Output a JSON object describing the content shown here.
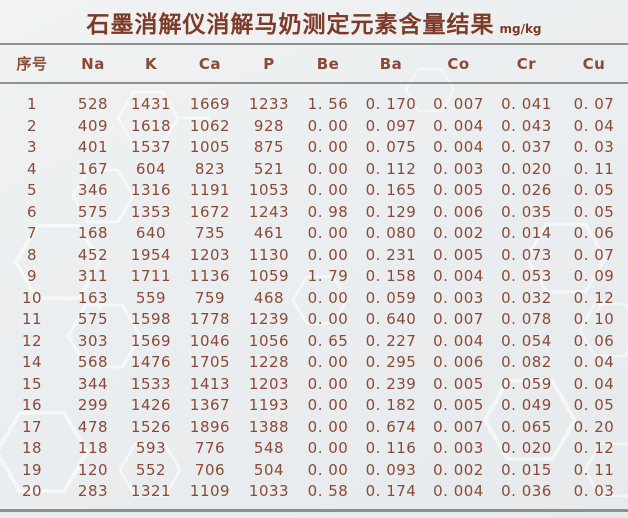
{
  "title": {
    "text": "石墨消解仪消解马奶测定元素含量结果",
    "unit": "mg/kg"
  },
  "table": {
    "columns": [
      "序号",
      "Na",
      "K",
      "Ca",
      "P",
      "Be",
      "Ba",
      "Co",
      "Cr",
      "Cu"
    ],
    "rows": [
      [
        "1",
        "528",
        "1431",
        "1669",
        "1233",
        "1. 56",
        "0. 170",
        "0. 007",
        "0. 041",
        "0. 07"
      ],
      [
        "2",
        "409",
        "1618",
        "1062",
        "928",
        "0. 00",
        "0. 097",
        "0. 004",
        "0. 043",
        "0. 04"
      ],
      [
        "3",
        "401",
        "1537",
        "1005",
        "875",
        "0. 00",
        "0. 075",
        "0. 004",
        "0. 037",
        "0. 03"
      ],
      [
        "4",
        "167",
        "604",
        "823",
        "521",
        "0. 00",
        "0. 112",
        "0. 003",
        "0. 020",
        "0. 11"
      ],
      [
        "5",
        "346",
        "1316",
        "1191",
        "1053",
        "0. 00",
        "0. 165",
        "0. 005",
        "0. 026",
        "0. 05"
      ],
      [
        "6",
        "575",
        "1353",
        "1672",
        "1243",
        "0. 98",
        "0. 129",
        "0. 006",
        "0. 035",
        "0. 05"
      ],
      [
        "7",
        "168",
        "640",
        "735",
        "461",
        "0. 00",
        "0. 080",
        "0. 002",
        "0. 014",
        "0. 06"
      ],
      [
        "8",
        "452",
        "1954",
        "1203",
        "1130",
        "0. 00",
        "0. 231",
        "0. 005",
        "0. 073",
        "0. 07"
      ],
      [
        "9",
        "311",
        "1711",
        "1136",
        "1059",
        "1. 79",
        "0. 158",
        "0. 004",
        "0. 053",
        "0. 09"
      ],
      [
        "10",
        "163",
        "559",
        "759",
        "468",
        "0. 00",
        "0. 059",
        "0. 003",
        "0. 032",
        "0. 12"
      ],
      [
        "11",
        "575",
        "1598",
        "1778",
        "1239",
        "0. 00",
        "0. 640",
        "0. 007",
        "0. 078",
        "0. 10"
      ],
      [
        "12",
        "303",
        "1569",
        "1046",
        "1056",
        "0. 65",
        "0. 227",
        "0. 004",
        "0. 054",
        "0. 06"
      ],
      [
        "14",
        "568",
        "1476",
        "1705",
        "1228",
        "0. 00",
        "0. 295",
        "0. 006",
        "0. 082",
        "0. 04"
      ],
      [
        "15",
        "344",
        "1533",
        "1413",
        "1203",
        "0. 00",
        "0. 239",
        "0. 005",
        "0. 059",
        "0. 04"
      ],
      [
        "16",
        "299",
        "1426",
        "1367",
        "1193",
        "0. 00",
        "0. 182",
        "0. 005",
        "0. 049",
        "0. 05"
      ],
      [
        "17",
        "478",
        "1526",
        "1896",
        "1388",
        "0. 00",
        "0. 674",
        "0. 007",
        "0. 065",
        "0. 20"
      ],
      [
        "18",
        "118",
        "593",
        "776",
        "548",
        "0. 00",
        "0. 116",
        "0. 003",
        "0. 020",
        "0. 12"
      ],
      [
        "19",
        "120",
        "552",
        "706",
        "504",
        "0. 00",
        "0. 093",
        "0. 002",
        "0. 015",
        "0. 11"
      ],
      [
        "20",
        "283",
        "1321",
        "1109",
        "1033",
        "0. 58",
        "0. 174",
        "0. 004",
        "0. 036",
        "0. 03"
      ]
    ]
  },
  "colors": {
    "text_brown": "#8a4a36",
    "title_brown": "#7d3a27",
    "rule_gray": "#8d8f90",
    "background": "#edeff1",
    "watermark_white": "#ffffff"
  },
  "chart_data": {
    "type": "table",
    "title": "石墨消解仪消解马奶测定元素含量结果",
    "unit": "mg/kg",
    "columns": [
      "序号",
      "Na",
      "K",
      "Ca",
      "P",
      "Be",
      "Ba",
      "Co",
      "Cr",
      "Cu"
    ],
    "rows": [
      [
        1,
        528,
        1431,
        1669,
        1233,
        1.56,
        0.17,
        0.007,
        0.041,
        0.07
      ],
      [
        2,
        409,
        1618,
        1062,
        928,
        0.0,
        0.097,
        0.004,
        0.043,
        0.04
      ],
      [
        3,
        401,
        1537,
        1005,
        875,
        0.0,
        0.075,
        0.004,
        0.037,
        0.03
      ],
      [
        4,
        167,
        604,
        823,
        521,
        0.0,
        0.112,
        0.003,
        0.02,
        0.11
      ],
      [
        5,
        346,
        1316,
        1191,
        1053,
        0.0,
        0.165,
        0.005,
        0.026,
        0.05
      ],
      [
        6,
        575,
        1353,
        1672,
        1243,
        0.98,
        0.129,
        0.006,
        0.035,
        0.05
      ],
      [
        7,
        168,
        640,
        735,
        461,
        0.0,
        0.08,
        0.002,
        0.014,
        0.06
      ],
      [
        8,
        452,
        1954,
        1203,
        1130,
        0.0,
        0.231,
        0.005,
        0.073,
        0.07
      ],
      [
        9,
        311,
        1711,
        1136,
        1059,
        1.79,
        0.158,
        0.004,
        0.053,
        0.09
      ],
      [
        10,
        163,
        559,
        759,
        468,
        0.0,
        0.059,
        0.003,
        0.032,
        0.12
      ],
      [
        11,
        575,
        1598,
        1778,
        1239,
        0.0,
        0.64,
        0.007,
        0.078,
        0.1
      ],
      [
        12,
        303,
        1569,
        1046,
        1056,
        0.65,
        0.227,
        0.004,
        0.054,
        0.06
      ],
      [
        14,
        568,
        1476,
        1705,
        1228,
        0.0,
        0.295,
        0.006,
        0.082,
        0.04
      ],
      [
        15,
        344,
        1533,
        1413,
        1203,
        0.0,
        0.239,
        0.005,
        0.059,
        0.04
      ],
      [
        16,
        299,
        1426,
        1367,
        1193,
        0.0,
        0.182,
        0.005,
        0.049,
        0.05
      ],
      [
        17,
        478,
        1526,
        1896,
        1388,
        0.0,
        0.674,
        0.007,
        0.065,
        0.2
      ],
      [
        18,
        118,
        593,
        776,
        548,
        0.0,
        0.116,
        0.003,
        0.02,
        0.12
      ],
      [
        19,
        120,
        552,
        706,
        504,
        0.0,
        0.093,
        0.002,
        0.015,
        0.11
      ],
      [
        20,
        283,
        1321,
        1109,
        1033,
        0.58,
        0.174,
        0.004,
        0.036,
        0.03
      ]
    ]
  }
}
